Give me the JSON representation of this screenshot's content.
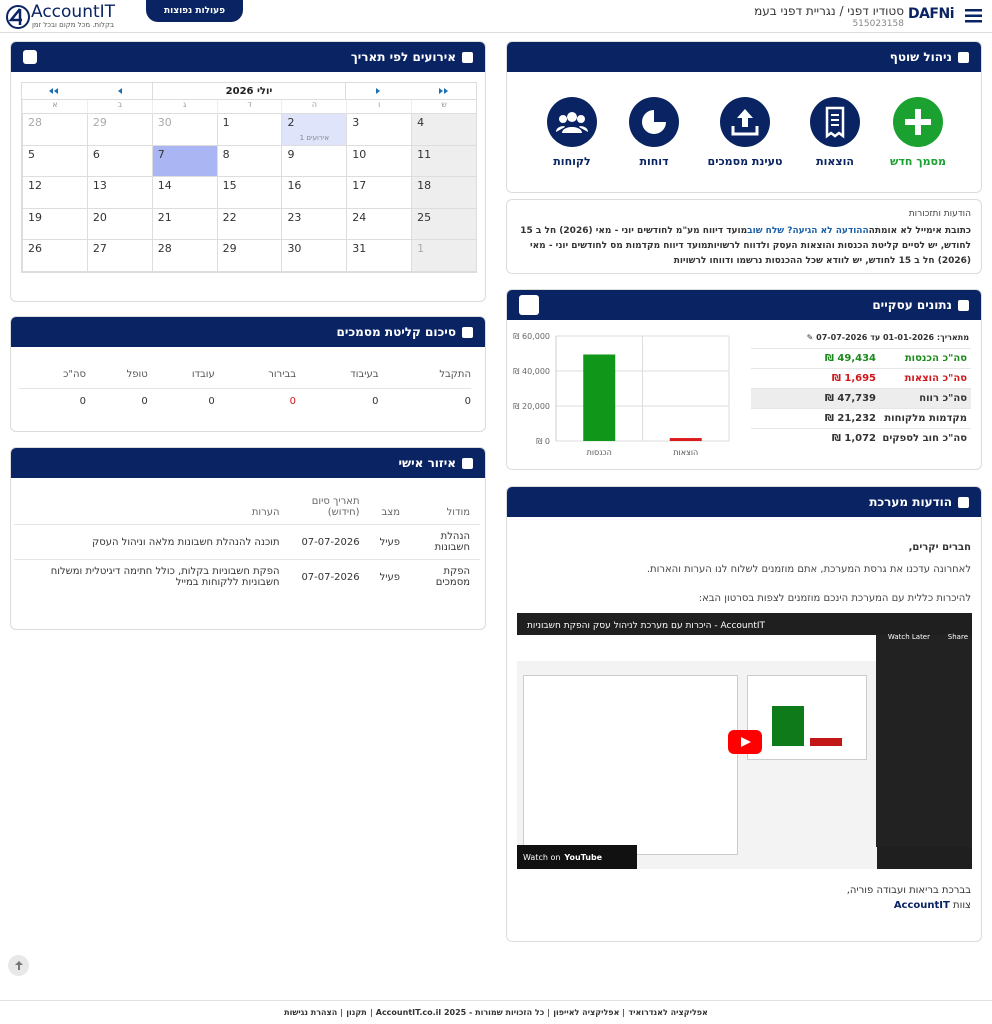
{
  "header": {
    "logo": "AccountIT",
    "tagline": "בקלות. מכל מקום ובכל זמן",
    "menu_button": "פעולות נפוצות",
    "company": "סטודיו דפני / נגריית דפני בעמ",
    "company_id": "515023158",
    "brand": "DAFNi"
  },
  "management": {
    "title": "ניהול שוטף",
    "actions": [
      {
        "label": "מסמך חדש",
        "color": "#1aa130"
      },
      {
        "label": "הוצאות",
        "color": "#0a2463"
      },
      {
        "label": "טעינת מסמכים",
        "color": "#0a2463"
      },
      {
        "label": "דוחות",
        "color": "#0a2463"
      },
      {
        "label": "לקוחות",
        "color": "#0a2463"
      }
    ]
  },
  "notices": {
    "title": "הודעות ותזכורות",
    "email_warning": "כתובת אימייל לא אומתה",
    "resend_link": "ההודעה לא הגיעה? שלח שוב",
    "items": [
      "מועד דיווח מע\"מ לחודשים יוני - מאי (2026) חל ב 15 לחודש, יש לסיים קליטת הכנסות והוצאות העסק ולדווח לרשויות",
      "מועד דיווח מקדמות מס לחודשים יוני - מאי (2026) חל ב 15 לחודש, יש לוודא שכל ההכנסות נרשמו ודווחו לרשויות"
    ]
  },
  "business_data": {
    "title": "נתונים עסקיים",
    "date_label": "מתאריך:",
    "date_range": "01-01-2026 עד 07-07-2026",
    "rows": [
      {
        "label": "סה\"כ הכנסות",
        "value": "49,434 ₪",
        "color": "#1a8a1a"
      },
      {
        "label": "סה\"כ הוצאות",
        "value": "1,695 ₪",
        "color": "#d0161b"
      },
      {
        "label": "סה\"כ רווח",
        "value": "47,739 ₪",
        "color": "#333333"
      },
      {
        "label": "מקדמות מלקוחות",
        "value": "21,232 ₪",
        "color": "#333333"
      },
      {
        "label": "סה\"כ חוב לספקים",
        "value": "1,072 ₪",
        "color": "#333333"
      }
    ],
    "chart": {
      "type": "bar",
      "categories": [
        "הכנסות",
        "הוצאות"
      ],
      "values": [
        49434,
        1695
      ],
      "colors": [
        "#109618",
        "#dc1c1c"
      ],
      "ylim": [
        0,
        60000
      ],
      "yticks": [
        {
          "value": 0,
          "label": "0 ₪"
        },
        {
          "value": 20000,
          "label": "20,000 ₪"
        },
        {
          "value": 40000,
          "label": "40,000 ₪"
        },
        {
          "value": 60000,
          "label": "60,000 ₪"
        }
      ],
      "grid": true
    }
  },
  "system_messages": {
    "title": "הודעות מערכת",
    "greeting": "חברים יקרים,",
    "line1": "לאחרונה עדכנו את גרסת המערכת, אתם מוזמנים לשלוח לנו הערות והארות.",
    "line2": "להיכרות כללית עם המערכת הינכם מוזמנים לצפות בסרטון הבא:",
    "video": {
      "title": "AccountIT - היכרות עם מערכת לניהול עסק והפקת חשבוניות",
      "watch_later": "Watch Later",
      "share": "Share",
      "watch_on": "Watch on",
      "youtube": "YouTube"
    },
    "closing": "בברכת בריאות ועבודה פוריה,",
    "team": "צוות",
    "team_name": "AccountIT"
  },
  "events": {
    "title": "אירועים לפי תאריך",
    "month": "יולי 2026",
    "weekdays": [
      "ש",
      "ו",
      "ה",
      "ד",
      "ג",
      "ב",
      "א"
    ],
    "weeks": [
      [
        {
          "day": 4
        },
        {
          "day": 3
        },
        {
          "day": 2,
          "events": "אירועים 1"
        },
        {
          "day": 1
        },
        {
          "day": 30,
          "other": true
        },
        {
          "day": 29,
          "other": true
        },
        {
          "day": 28,
          "other": true
        }
      ],
      [
        {
          "day": 11
        },
        {
          "day": 10
        },
        {
          "day": 9
        },
        {
          "day": 8
        },
        {
          "day": 7,
          "today": true
        },
        {
          "day": 6
        },
        {
          "day": 5
        }
      ],
      [
        {
          "day": 18
        },
        {
          "day": 17
        },
        {
          "day": 16
        },
        {
          "day": 15
        },
        {
          "day": 14
        },
        {
          "day": 13
        },
        {
          "day": 12
        }
      ],
      [
        {
          "day": 25
        },
        {
          "day": 24
        },
        {
          "day": 23
        },
        {
          "day": 22
        },
        {
          "day": 21
        },
        {
          "day": 20
        },
        {
          "day": 19
        }
      ],
      [
        {
          "day": 1,
          "other": true
        },
        {
          "day": 31
        },
        {
          "day": 30
        },
        {
          "day": 29
        },
        {
          "day": 28
        },
        {
          "day": 27
        },
        {
          "day": 26
        }
      ]
    ]
  },
  "documents_summary": {
    "title": "סיכום קליטת מסמכים",
    "headers": [
      "התקבל",
      "בעיבוד",
      "בבירור",
      "עובדו",
      "טופל",
      "סה\"כ"
    ],
    "values": [
      0,
      0,
      0,
      0,
      0,
      0
    ],
    "highlight": 2
  },
  "personal_area": {
    "title": "איזור אישי",
    "headers": [
      "מודול",
      "מצב",
      "תאריך סיום (חידוש)",
      "הערות"
    ],
    "rows": [
      [
        "הנהלת חשבונות",
        "פעיל",
        "07-07-2026",
        "תוכנה להנהלת חשבונות מלאה וניהול העסק"
      ],
      [
        "הפקת מסמכים",
        "פעיל",
        "07-07-2026",
        "הפקת חשבוניות בקלות, כולל חתימה דיגיטלית ומשלוח חשבוניות ללקוחות במייל"
      ]
    ]
  },
  "footer": {
    "links": [
      "אפליקציה לאנדרואיד",
      "אפליקציה לאייפון",
      "כל הזכויות שמורות - 2025 AccountIT.co.il",
      "תקנון",
      "הצהרת נגישות"
    ]
  }
}
